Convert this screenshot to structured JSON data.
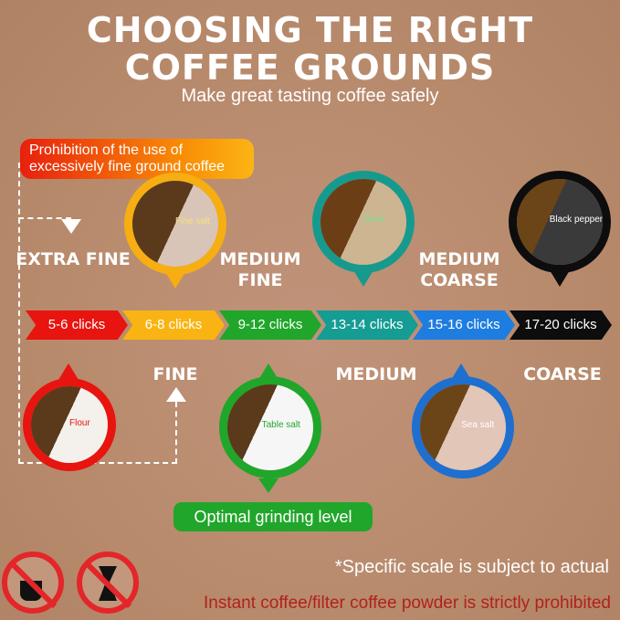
{
  "header": {
    "title_line1": "CHOOSING THE RIGHT",
    "title_line2": "COFFEE GROUNDS",
    "subtitle": "Make great tasting coffee safely"
  },
  "warning_banner": "Prohibition of the use of excessively fine ground coffee",
  "grind_labels": {
    "extra_fine": "EXTRA FINE",
    "medium_fine": "MEDIUM FINE",
    "medium_coarse": "MEDIUM COARSE",
    "fine": "FINE",
    "medium": "MEDIUM",
    "coarse": "COARSE"
  },
  "comparisons": {
    "flour": "Flour",
    "fine_salt": "Fine salt",
    "table_salt": "Table salt",
    "sand": "Sand",
    "sea_salt": "Sea salt",
    "black_pepper": "Black pepper"
  },
  "clicks": [
    {
      "label": "5-6 clicks",
      "color": "#e8140f"
    },
    {
      "label": "6-8 clicks",
      "color": "#f9b413"
    },
    {
      "label": "9-12 clicks",
      "color": "#20a62a"
    },
    {
      "label": "13-14 clicks",
      "color": "#159c93"
    },
    {
      "label": "15-16 clicks",
      "color": "#1e7de0"
    },
    {
      "label": "17-20 clicks",
      "color": "#0d0d0d"
    }
  ],
  "optimal_label": "Optimal grinding level",
  "footer": {
    "note": "*Specific scale is subject to actual",
    "prohibited": "Instant coffee/filter coffee powder is strictly prohibited"
  },
  "icons": [
    "no-instant-coffee-icon",
    "no-filter-coffee-icon"
  ]
}
